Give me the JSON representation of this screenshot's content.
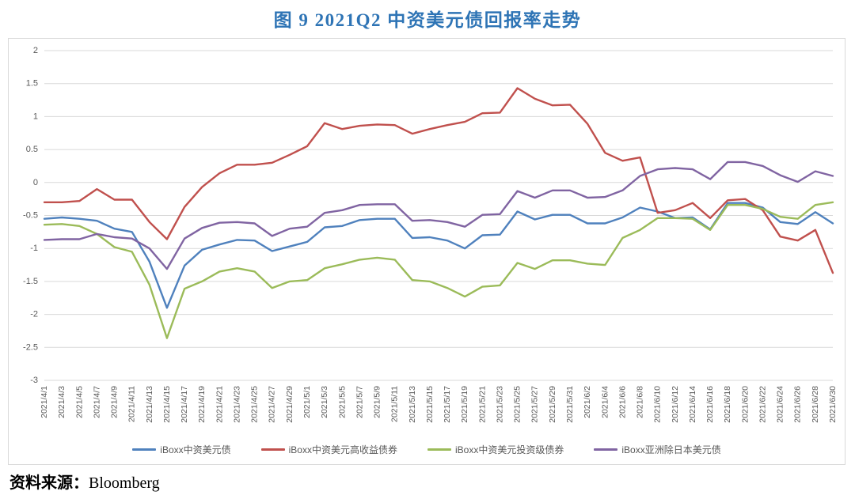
{
  "title": "图 9  2021Q2 中资美元债回报率走势",
  "source": {
    "label": "资料来源：",
    "value": "Bloomberg"
  },
  "colors": {
    "title_blue": "#2E74B5",
    "grid": "#D9D9D9",
    "axis_text": "#595959",
    "chart_border": "#D9D9D9"
  },
  "chart_data": {
    "type": "line",
    "title": "图 9  2021Q2 中资美元债回报率走势",
    "xlabel": "",
    "ylabel": "",
    "ylim": [
      -3,
      2
    ],
    "ytick_step": 0.5,
    "yticks": [
      "2",
      "1.5",
      "1",
      "0.5",
      "0",
      "-0.5",
      "-1",
      "-1.5",
      "-2",
      "-2.5",
      "-3"
    ],
    "grid": true,
    "legend_position": "bottom",
    "x": [
      "2021/4/1",
      "2021/4/3",
      "2021/4/5",
      "2021/4/7",
      "2021/4/9",
      "2021/4/11",
      "2021/4/13",
      "2021/4/15",
      "2021/4/17",
      "2021/4/19",
      "2021/4/21",
      "2021/4/23",
      "2021/4/25",
      "2021/4/27",
      "2021/4/29",
      "2021/5/1",
      "2021/5/3",
      "2021/5/5",
      "2021/5/7",
      "2021/5/9",
      "2021/5/11",
      "2021/5/13",
      "2021/5/15",
      "2021/5/17",
      "2021/5/19",
      "2021/5/21",
      "2021/5/23",
      "2021/5/25",
      "2021/5/27",
      "2021/5/29",
      "2021/5/31",
      "2021/6/2",
      "2021/6/4",
      "2021/6/6",
      "2021/6/8",
      "2021/6/10",
      "2021/6/12",
      "2021/6/14",
      "2021/6/16",
      "2021/6/18",
      "2021/6/20",
      "2021/6/22",
      "2021/6/24",
      "2021/6/26",
      "2021/6/28",
      "2021/6/30"
    ],
    "series": [
      {
        "name": "iBoxx中资美元债",
        "color": "#4F81BD",
        "values": [
          -0.55,
          -0.53,
          -0.55,
          -0.58,
          -0.7,
          -0.75,
          -1.2,
          -1.9,
          -1.26,
          -1.02,
          -0.94,
          -0.87,
          -0.88,
          -1.04,
          -0.97,
          -0.9,
          -0.68,
          -0.66,
          -0.57,
          -0.55,
          -0.55,
          -0.84,
          -0.83,
          -0.88,
          -1.0,
          -0.8,
          -0.79,
          -0.44,
          -0.56,
          -0.49,
          -0.49,
          -0.62,
          -0.62,
          -0.53,
          -0.38,
          -0.44,
          -0.54,
          -0.53,
          -0.71,
          -0.31,
          -0.31,
          -0.38,
          -0.6,
          -0.63,
          -0.45,
          -0.62
        ]
      },
      {
        "name": "iBoxx中资美元高收益债券",
        "color": "#C0504D",
        "values": [
          -0.3,
          -0.3,
          -0.28,
          -0.1,
          -0.26,
          -0.26,
          -0.6,
          -0.86,
          -0.37,
          -0.07,
          0.14,
          0.27,
          0.27,
          0.3,
          0.42,
          0.55,
          0.9,
          0.81,
          0.86,
          0.88,
          0.87,
          0.74,
          0.81,
          0.87,
          0.92,
          1.05,
          1.06,
          1.43,
          1.27,
          1.17,
          1.18,
          0.89,
          0.45,
          0.33,
          0.38,
          -0.46,
          -0.42,
          -0.31,
          -0.54,
          -0.27,
          -0.25,
          -0.42,
          -0.82,
          -0.88,
          -0.72,
          -1.37
        ]
      },
      {
        "name": "iBoxx中资美元投资级债券",
        "color": "#9BBB59",
        "values": [
          -0.64,
          -0.63,
          -0.66,
          -0.78,
          -0.98,
          -1.05,
          -1.55,
          -2.36,
          -1.61,
          -1.5,
          -1.35,
          -1.3,
          -1.35,
          -1.6,
          -1.5,
          -1.48,
          -1.3,
          -1.24,
          -1.17,
          -1.14,
          -1.17,
          -1.48,
          -1.5,
          -1.6,
          -1.73,
          -1.58,
          -1.56,
          -1.22,
          -1.31,
          -1.18,
          -1.18,
          -1.23,
          -1.25,
          -0.84,
          -0.72,
          -0.54,
          -0.54,
          -0.55,
          -0.72,
          -0.34,
          -0.34,
          -0.4,
          -0.52,
          -0.55,
          -0.34,
          -0.3
        ]
      },
      {
        "name": "iBoxx亚洲除日本美元债",
        "color": "#8064A2",
        "values": [
          -0.87,
          -0.86,
          -0.86,
          -0.78,
          -0.83,
          -0.85,
          -1.0,
          -1.31,
          -0.85,
          -0.69,
          -0.61,
          -0.6,
          -0.62,
          -0.81,
          -0.7,
          -0.67,
          -0.46,
          -0.42,
          -0.34,
          -0.33,
          -0.33,
          -0.58,
          -0.57,
          -0.6,
          -0.67,
          -0.49,
          -0.48,
          -0.13,
          -0.23,
          -0.12,
          -0.12,
          -0.23,
          -0.22,
          -0.12,
          0.1,
          0.2,
          0.22,
          0.2,
          0.05,
          0.31,
          0.31,
          0.25,
          0.11,
          0.01,
          0.17,
          0.1
        ]
      }
    ]
  }
}
